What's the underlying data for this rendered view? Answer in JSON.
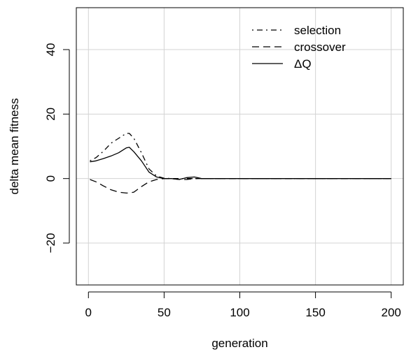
{
  "chart_data": {
    "type": "line",
    "title": "",
    "xlabel": "generation",
    "ylabel": "delta mean fitness",
    "xlim": [
      -8,
      208
    ],
    "ylim": [
      -33,
      53
    ],
    "xticks": [
      0,
      50,
      100,
      150,
      200
    ],
    "yticks": [
      -20,
      0,
      20,
      40
    ],
    "xtick_labels": [
      "0",
      "50",
      "100",
      "150",
      "200"
    ],
    "ytick_labels": [
      "−20",
      "0",
      "20",
      "40"
    ],
    "grid": true,
    "legend_position": "top-right",
    "x": [
      1,
      5,
      10,
      15,
      20,
      25,
      27,
      30,
      35,
      40,
      45,
      50,
      55,
      60,
      65,
      70,
      75,
      80,
      90,
      100,
      120,
      140,
      160,
      180,
      200
    ],
    "series": [
      {
        "name": "selection",
        "line_style": "dotdash",
        "values": [
          5.5,
          6.5,
          8.5,
          11,
          12.5,
          14,
          14,
          12.5,
          8,
          3,
          0.8,
          0.1,
          0,
          0,
          0,
          0,
          0,
          0,
          0,
          0,
          0,
          0,
          0,
          0,
          0
        ]
      },
      {
        "name": "crossover",
        "line_style": "dashed",
        "values": [
          -0.3,
          -1,
          -2.3,
          -3.5,
          -4.2,
          -4.5,
          -4.5,
          -4.2,
          -2.5,
          -1,
          -0.3,
          0,
          0,
          -0.3,
          -0.3,
          0,
          0,
          0,
          0,
          0,
          0,
          0,
          0,
          0,
          0
        ]
      },
      {
        "name": "ΔQ",
        "line_style": "solid",
        "values": [
          5.2,
          5.5,
          6.2,
          7,
          8,
          9.5,
          9.7,
          8.3,
          5.5,
          2,
          0.5,
          0,
          0,
          -0.3,
          0.3,
          0.5,
          0,
          0,
          0,
          0,
          0,
          0,
          0,
          0,
          0
        ]
      }
    ],
    "colors": {
      "lines": "#000000",
      "grid": "#d3d3d3",
      "frame": "#000000"
    }
  }
}
